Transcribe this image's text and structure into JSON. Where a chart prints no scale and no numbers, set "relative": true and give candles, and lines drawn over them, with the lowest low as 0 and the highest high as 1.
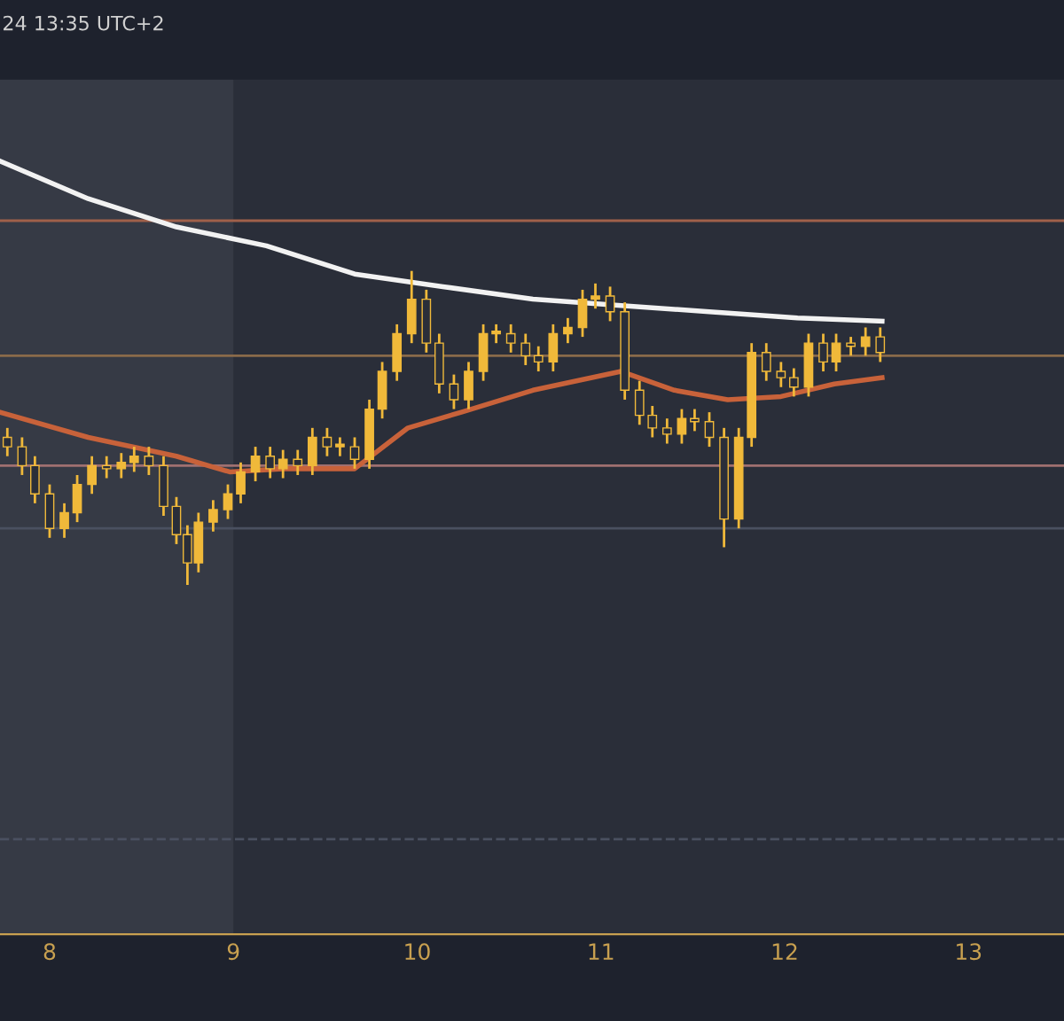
{
  "chart_data": {
    "type": "candlestick",
    "relative": true,
    "color": "#f0b93a",
    "x": [
      7.77,
      7.85,
      7.92,
      8.0,
      8.08,
      8.15,
      8.23,
      8.31,
      8.39,
      8.46,
      8.54,
      8.62,
      8.69,
      8.75,
      8.81,
      8.89,
      8.97,
      9.04,
      9.12,
      9.2,
      9.27,
      9.35,
      9.43,
      9.51,
      9.58,
      9.66,
      9.74,
      9.81,
      9.89,
      9.97,
      10.05,
      10.12,
      10.2,
      10.28,
      10.36,
      10.43,
      10.51,
      10.59,
      10.66,
      10.74,
      10.82,
      10.9,
      10.97,
      11.05,
      11.13,
      11.21,
      11.28,
      11.36,
      11.44,
      11.51,
      11.59,
      11.67,
      11.75,
      11.82,
      11.9,
      11.98,
      12.05,
      12.13,
      12.21,
      12.28,
      12.36,
      12.44,
      12.52
    ],
    "ohlc": [
      [
        0.47,
        0.5,
        0.41,
        0.44
      ],
      [
        0.44,
        0.47,
        0.35,
        0.38
      ],
      [
        0.38,
        0.41,
        0.26,
        0.29
      ],
      [
        0.29,
        0.32,
        0.15,
        0.18
      ],
      [
        0.18,
        0.26,
        0.15,
        0.23
      ],
      [
        0.23,
        0.35,
        0.2,
        0.32
      ],
      [
        0.32,
        0.41,
        0.29,
        0.38
      ],
      [
        0.38,
        0.41,
        0.34,
        0.37
      ],
      [
        0.37,
        0.42,
        0.34,
        0.39
      ],
      [
        0.39,
        0.44,
        0.36,
        0.41
      ],
      [
        0.41,
        0.44,
        0.35,
        0.38
      ],
      [
        0.38,
        0.41,
        0.22,
        0.25
      ],
      [
        0.25,
        0.28,
        0.13,
        0.16
      ],
      [
        0.16,
        0.19,
        0,
        0.07
      ],
      [
        0.07,
        0.23,
        0.04,
        0.2
      ],
      [
        0.2,
        0.27,
        0.17,
        0.24
      ],
      [
        0.24,
        0.32,
        0.21,
        0.29
      ],
      [
        0.29,
        0.39,
        0.26,
        0.36
      ],
      [
        0.36,
        0.44,
        0.33,
        0.41
      ],
      [
        0.41,
        0.44,
        0.34,
        0.37
      ],
      [
        0.37,
        0.43,
        0.34,
        0.4
      ],
      [
        0.4,
        0.43,
        0.35,
        0.38
      ],
      [
        0.38,
        0.5,
        0.35,
        0.47
      ],
      [
        0.47,
        0.5,
        0.41,
        0.44
      ],
      [
        0.44,
        0.47,
        0.41,
        0.44
      ],
      [
        0.44,
        0.47,
        0.37,
        0.4
      ],
      [
        0.4,
        0.59,
        0.37,
        0.56
      ],
      [
        0.56,
        0.71,
        0.53,
        0.68
      ],
      [
        0.68,
        0.83,
        0.65,
        0.8
      ],
      [
        0.8,
        1,
        0.77,
        0.91
      ],
      [
        0.91,
        0.94,
        0.74,
        0.77
      ],
      [
        0.77,
        0.8,
        0.61,
        0.64
      ],
      [
        0.64,
        0.67,
        0.56,
        0.59
      ],
      [
        0.59,
        0.71,
        0.56,
        0.68
      ],
      [
        0.68,
        0.83,
        0.65,
        0.8
      ],
      [
        0.8,
        0.83,
        0.77,
        0.8
      ],
      [
        0.8,
        0.83,
        0.74,
        0.77
      ],
      [
        0.77,
        0.8,
        0.7,
        0.73
      ],
      [
        0.73,
        0.76,
        0.68,
        0.71
      ],
      [
        0.71,
        0.83,
        0.68,
        0.8
      ],
      [
        0.8,
        0.85,
        0.77,
        0.82
      ],
      [
        0.82,
        0.94,
        0.79,
        0.91
      ],
      [
        0.91,
        0.96,
        0.88,
        0.92
      ],
      [
        0.92,
        0.95,
        0.84,
        0.87
      ],
      [
        0.87,
        0.9,
        0.59,
        0.62
      ],
      [
        0.62,
        0.65,
        0.51,
        0.54
      ],
      [
        0.54,
        0.57,
        0.47,
        0.5
      ],
      [
        0.5,
        0.53,
        0.45,
        0.48
      ],
      [
        0.48,
        0.56,
        0.45,
        0.53
      ],
      [
        0.53,
        0.56,
        0.49,
        0.52
      ],
      [
        0.52,
        0.55,
        0.44,
        0.47
      ],
      [
        0.47,
        0.5,
        0.12,
        0.21
      ],
      [
        0.21,
        0.5,
        0.18,
        0.47
      ],
      [
        0.47,
        0.77,
        0.44,
        0.74
      ],
      [
        0.74,
        0.77,
        0.65,
        0.68
      ],
      [
        0.68,
        0.71,
        0.63,
        0.66
      ],
      [
        0.66,
        0.69,
        0.6,
        0.63
      ],
      [
        0.63,
        0.8,
        0.6,
        0.77
      ],
      [
        0.77,
        0.8,
        0.68,
        0.71
      ],
      [
        0.71,
        0.8,
        0.68,
        0.77
      ],
      [
        0.77,
        0.79,
        0.73,
        0.76
      ],
      [
        0.76,
        0.82,
        0.73,
        0.79
      ],
      [
        0.79,
        0.82,
        0.71,
        0.74
      ]
    ],
    "series": [
      {
        "type": "line",
        "color": "#f2f2f2",
        "x": [
          7.73,
          8.21,
          8.69,
          9.18,
          9.66,
          10.14,
          10.63,
          11.11,
          11.59,
          12.07,
          12.53
        ],
        "values": [
          1.35,
          1.23,
          1.14,
          1.08,
          0.99,
          0.95,
          0.91,
          0.89,
          0.87,
          0.85,
          0.84
        ]
      },
      {
        "type": "line",
        "color": "#c8623a",
        "x": [
          7.73,
          8.21,
          8.69,
          8.98,
          9.27,
          9.66,
          9.95,
          10.24,
          10.63,
          11.11,
          11.4,
          11.69,
          11.98,
          12.27,
          12.53
        ],
        "values": [
          0.55,
          0.47,
          0.41,
          0.36,
          0.37,
          0.37,
          0.5,
          0.55,
          0.62,
          0.68,
          0.62,
          0.59,
          0.6,
          0.64,
          0.66
        ]
      }
    ],
    "ref_lines": [
      {
        "axis": "y",
        "value": 1.16,
        "color": "#a0604a"
      },
      {
        "axis": "y",
        "value": 0.73,
        "color": "#8a6a4a"
      },
      {
        "axis": "y",
        "value": 0.38,
        "color": "#a07070"
      },
      {
        "axis": "y",
        "value": 0.18,
        "color": "#4a5060"
      },
      {
        "axis": "y",
        "value": -0.81,
        "color": "#4a5060",
        "line_style": "dashed"
      }
    ],
    "bands": [
      {
        "axis": "x",
        "from": 7.73,
        "to": 9.0,
        "color": "#363a45"
      }
    ],
    "xlim": [
      7.73,
      13.52
    ],
    "xticks": [
      8,
      9,
      10,
      11,
      12,
      13
    ],
    "tick_labels": "x",
    "annotations": [
      "24 13:35 UTC+2"
    ]
  }
}
